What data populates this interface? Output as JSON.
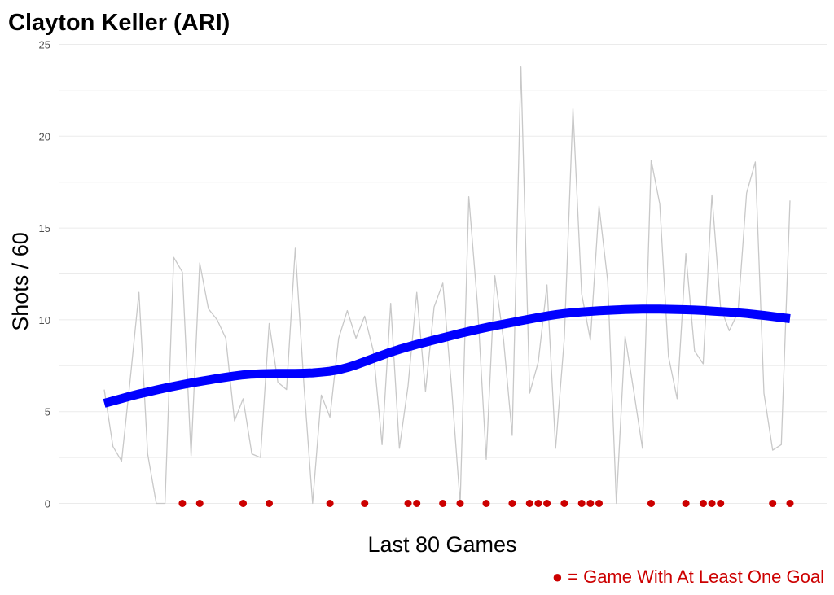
{
  "chart_data": {
    "type": "line",
    "title": "Clayton Keller (ARI)",
    "xlabel": "Last 80 Games",
    "ylabel": "Shots / 60",
    "ylim": [
      0,
      25
    ],
    "yticks": [
      "0",
      "5",
      "10",
      "15",
      "20",
      "25"
    ],
    "grid": true,
    "legend": "none",
    "caption": "● = Game With At Least One Goal",
    "colors": {
      "raw_line": "#c8c8c8",
      "smooth_line": "#0000ff",
      "goal_marker": "#cc0000",
      "grid": "#ebebeb",
      "caption": "#cc0000"
    },
    "x": [
      1,
      2,
      3,
      4,
      5,
      6,
      7,
      8,
      9,
      10,
      11,
      12,
      13,
      14,
      15,
      16,
      17,
      18,
      19,
      20,
      21,
      22,
      23,
      24,
      25,
      26,
      27,
      28,
      29,
      30,
      31,
      32,
      33,
      34,
      35,
      36,
      37,
      38,
      39,
      40,
      41,
      42,
      43,
      44,
      45,
      46,
      47,
      48,
      49,
      50,
      51,
      52,
      53,
      54,
      55,
      56,
      57,
      58,
      59,
      60,
      61,
      62,
      63,
      64,
      65,
      66,
      67,
      68,
      69,
      70,
      71,
      72,
      73,
      74,
      75,
      76,
      77,
      78,
      79,
      80
    ],
    "series": [
      {
        "values": [
          6.2,
          3.1,
          2.3,
          6.8,
          11.5,
          2.7,
          0,
          0,
          13.4,
          12.6,
          2.6,
          13.1,
          10.6,
          10.0,
          9.0,
          4.5,
          5.7,
          2.7,
          2.5,
          9.8,
          6.6,
          6.2,
          13.9,
          6.5,
          0,
          5.9,
          4.7,
          9.0,
          10.5,
          9.0,
          10.2,
          8.3,
          3.2,
          10.9,
          3.0,
          6.4,
          11.5,
          6.1,
          10.7,
          12.0,
          6.4,
          0,
          16.7,
          10.8,
          2.4,
          12.4,
          8.9,
          3.7,
          23.8,
          6.0,
          7.7,
          11.9,
          3.0,
          9.0,
          21.5,
          11.4,
          8.9,
          16.2,
          12.1,
          0,
          9.1,
          6.1,
          3.0,
          18.7,
          16.3,
          8.0,
          5.7,
          13.6,
          8.3,
          7.6,
          16.8,
          10.7,
          9.4,
          10.4,
          16.9,
          18.6,
          6.0,
          2.9,
          3.2,
          16.5
        ]
      },
      {
        "values": [
          5.45,
          5.58,
          5.71,
          5.84,
          5.96,
          6.07,
          6.18,
          6.28,
          6.38,
          6.47,
          6.56,
          6.64,
          6.72,
          6.8,
          6.87,
          6.94,
          7.0,
          7.04,
          7.06,
          7.07,
          7.08,
          7.08,
          7.08,
          7.09,
          7.11,
          7.15,
          7.2,
          7.28,
          7.4,
          7.55,
          7.72,
          7.9,
          8.07,
          8.24,
          8.39,
          8.53,
          8.66,
          8.78,
          8.9,
          9.02,
          9.14,
          9.26,
          9.37,
          9.48,
          9.58,
          9.68,
          9.77,
          9.86,
          9.95,
          10.04,
          10.13,
          10.21,
          10.28,
          10.34,
          10.39,
          10.43,
          10.46,
          10.49,
          10.52,
          10.54,
          10.56,
          10.57,
          10.58,
          10.58,
          10.58,
          10.57,
          10.56,
          10.55,
          10.53,
          10.51,
          10.48,
          10.45,
          10.42,
          10.38,
          10.34,
          10.29,
          10.24,
          10.18,
          10.12,
          10.06
        ]
      }
    ],
    "goal_games": [
      10,
      12,
      17,
      20,
      27,
      31,
      36,
      37,
      40,
      42,
      45,
      48,
      50,
      51,
      52,
      54,
      56,
      57,
      58,
      64,
      68,
      70,
      71,
      72,
      78,
      80
    ],
    "goal_marker_y": 0
  }
}
